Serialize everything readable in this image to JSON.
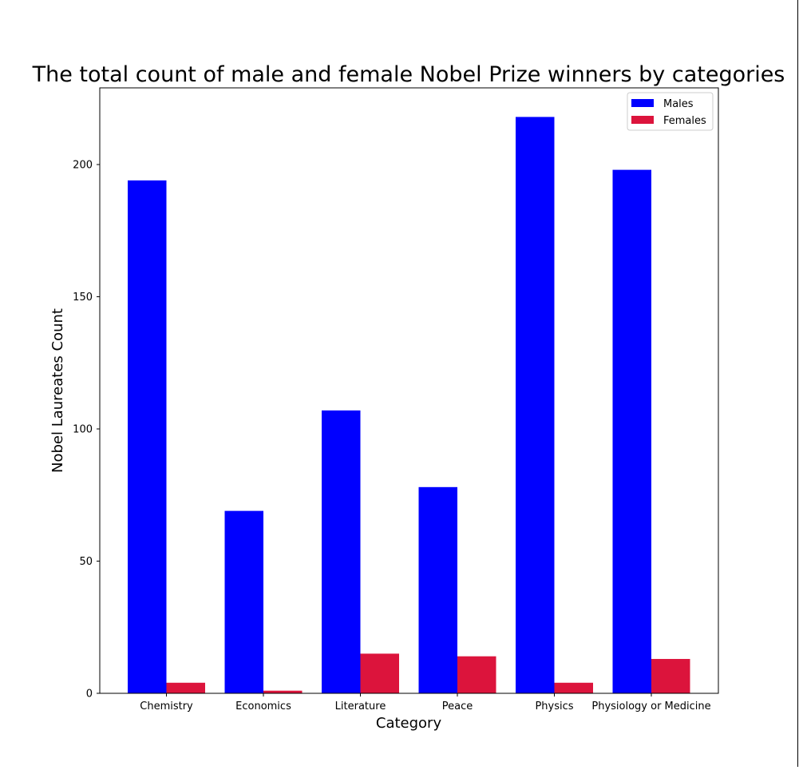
{
  "colors": {
    "males": "#0000ff",
    "females": "#dc143c",
    "axis": "#000000",
    "background": "#ffffff"
  },
  "chart_data": {
    "type": "bar",
    "title": "The total count of male and female Nobel Prize winners by categories",
    "xlabel": "Category",
    "ylabel": "Nobel Laureates Count",
    "categories": [
      "Chemistry",
      "Economics",
      "Literature",
      "Peace",
      "Physics",
      "Physiology or Medicine"
    ],
    "series": [
      {
        "name": "Males",
        "values": [
          194,
          69,
          107,
          78,
          218,
          198
        ]
      },
      {
        "name": "Females",
        "values": [
          4,
          1,
          15,
          14,
          4,
          13
        ]
      }
    ],
    "ylim": [
      0,
      229
    ],
    "yticks": [
      0,
      50,
      100,
      150,
      200
    ],
    "grid": false,
    "legend": "top-right"
  }
}
